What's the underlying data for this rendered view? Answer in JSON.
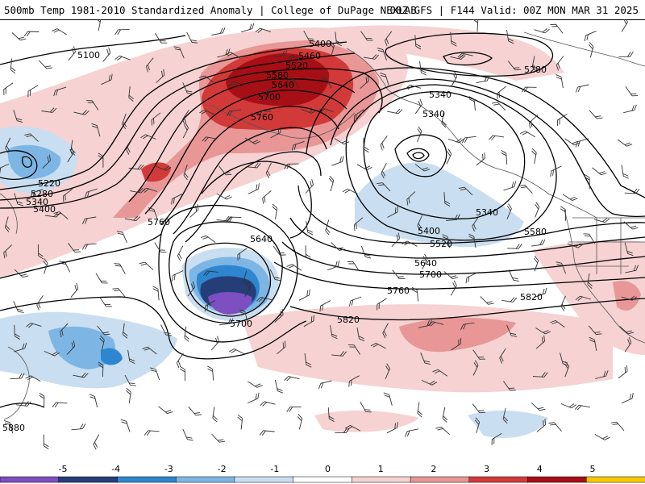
{
  "header": {
    "title_left": "500mb Temp 1981-2010 Standardized Anomaly | College of DuPage NEXLAB",
    "title_right": "00Z GFS | F144 Valid: 00Z MON MAR 31 2025"
  },
  "contour_labels": [
    {
      "id": "5100",
      "text": "5100"
    },
    {
      "id": "5400a",
      "text": "5400"
    },
    {
      "id": "5460",
      "text": "5460"
    },
    {
      "id": "5520",
      "text": "5520"
    },
    {
      "id": "5580a",
      "text": "5580"
    },
    {
      "id": "5640a",
      "text": "5640"
    },
    {
      "id": "5700a",
      "text": "5700"
    },
    {
      "id": "5760a",
      "text": "5760"
    },
    {
      "id": "5280a",
      "text": "5280"
    },
    {
      "id": "5340a",
      "text": "5340"
    },
    {
      "id": "5340b",
      "text": "5340"
    },
    {
      "id": "5220",
      "text": "5220"
    },
    {
      "id": "5280b",
      "text": "5280"
    },
    {
      "id": "5340c",
      "text": "5340"
    },
    {
      "id": "5400b",
      "text": "5400"
    },
    {
      "id": "5760b",
      "text": "5760"
    },
    {
      "id": "5640b",
      "text": "5640"
    },
    {
      "id": "5700b",
      "text": "5700"
    },
    {
      "id": "5340d",
      "text": "5340"
    },
    {
      "id": "5400c",
      "text": "5400"
    },
    {
      "id": "5520b",
      "text": "5520"
    },
    {
      "id": "5580b",
      "text": "5580"
    },
    {
      "id": "5640c",
      "text": "5640"
    },
    {
      "id": "5700c",
      "text": "5700"
    },
    {
      "id": "5760c",
      "text": "5760"
    },
    {
      "id": "5820a",
      "text": "5820"
    },
    {
      "id": "5820b",
      "text": "5820"
    },
    {
      "id": "5880",
      "text": "5880"
    }
  ],
  "colorbar": {
    "ticks": [
      "-5",
      "-4",
      "-3",
      "-2",
      "-1",
      "0",
      "1",
      "2",
      "3",
      "4",
      "5"
    ],
    "colors": [
      "#7d4fc0",
      "#263e78",
      "#2e86d0",
      "#7db6e4",
      "#c9def0",
      "#ffffff",
      "#f6d2d2",
      "#e89696",
      "#d23a3a",
      "#a50f15",
      "#f5c800"
    ]
  },
  "colors": {
    "anom_pos_1": "#f6d2d2",
    "anom_pos_2": "#e89696",
    "anom_pos_3": "#d23a3a",
    "anom_pos_4": "#a50f15",
    "anom_neg_1": "#c9def0",
    "anom_neg_2": "#7db6e4",
    "anom_neg_3": "#2e86d0",
    "anom_neg_4": "#263e78",
    "anom_neg_5": "#7d4fc0"
  }
}
